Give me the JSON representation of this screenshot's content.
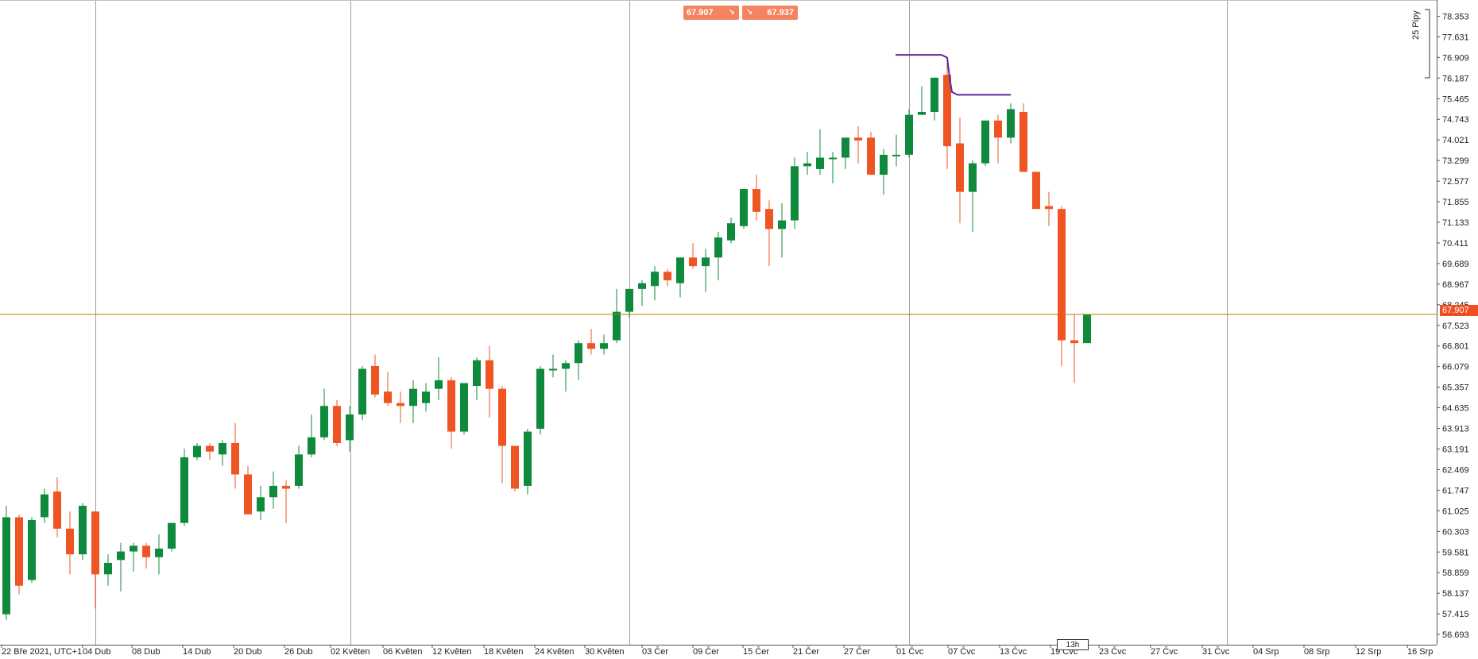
{
  "toolbar": {
    "sell_price": "67.907",
    "sell_arrow": "↘",
    "buy_price": "67.937",
    "buy_arrow": "↘"
  },
  "axis": {
    "pips_label": "25 Pipy",
    "current_price_tag": "67.907",
    "cursor_timeframe": "13h"
  },
  "colors": {
    "bull": "#0f8a3c",
    "bear": "#ef5423",
    "current_line": "#b07d00",
    "indicator": "#5b2a9b",
    "grid": "#a0a0a0"
  },
  "chart_data": {
    "type": "candlestick",
    "ylim": [
      56.5,
      78.7
    ],
    "y_ticks": [
      "78.353",
      "77.631",
      "76.909",
      "76.187",
      "75.465",
      "74.743",
      "74.021",
      "73.299",
      "72.577",
      "71.855",
      "71.133",
      "70.411",
      "69.689",
      "68.967",
      "68.245",
      "67.523",
      "66.801",
      "66.079",
      "65.357",
      "64.635",
      "63.913",
      "63.191",
      "62.469",
      "61.747",
      "61.025",
      "60.303",
      "59.581",
      "58.859",
      "58.137",
      "57.415",
      "56.693"
    ],
    "x_ticks": [
      "22 Bře 2021, UTC+1",
      "04 Dub",
      "08 Dub",
      "14 Dub",
      "20 Dub",
      "26 Dub",
      "02 Květen",
      "06 Květen",
      "12 Květen",
      "18 Květen",
      "24 Květen",
      "30 Květen",
      "03 Čer",
      "09 Čer",
      "15 Čer",
      "21 Čer",
      "27 Čer",
      "01 Čvc",
      "07 Čvc",
      "13 Čvc",
      "19 Čvc",
      "23 Čvc",
      "27 Čvc",
      "31 Čvc",
      "04 Srp",
      "08 Srp",
      "12 Srp",
      "16 Srp"
    ],
    "current_price": 67.907,
    "candles": [
      {
        "o": 57.4,
        "h": 61.2,
        "l": 57.2,
        "c": 60.8
      },
      {
        "o": 60.8,
        "h": 60.9,
        "l": 58.1,
        "c": 58.4
      },
      {
        "o": 58.6,
        "h": 60.8,
        "l": 58.5,
        "c": 60.7
      },
      {
        "o": 60.8,
        "h": 61.8,
        "l": 60.6,
        "c": 61.6
      },
      {
        "o": 61.7,
        "h": 62.2,
        "l": 60.1,
        "c": 60.4
      },
      {
        "o": 60.4,
        "h": 61.0,
        "l": 58.8,
        "c": 59.5
      },
      {
        "o": 59.5,
        "h": 61.3,
        "l": 59.3,
        "c": 61.2
      },
      {
        "o": 61.0,
        "h": 61.0,
        "l": 57.6,
        "c": 58.8
      },
      {
        "o": 58.8,
        "h": 59.5,
        "l": 58.4,
        "c": 59.2
      },
      {
        "o": 59.3,
        "h": 59.9,
        "l": 58.2,
        "c": 59.6
      },
      {
        "o": 59.6,
        "h": 59.9,
        "l": 58.9,
        "c": 59.8
      },
      {
        "o": 59.8,
        "h": 59.9,
        "l": 59.0,
        "c": 59.4
      },
      {
        "o": 59.4,
        "h": 60.2,
        "l": 58.8,
        "c": 59.7
      },
      {
        "o": 59.7,
        "h": 60.6,
        "l": 59.6,
        "c": 60.6
      },
      {
        "o": 60.6,
        "h": 63.2,
        "l": 60.5,
        "c": 62.9
      },
      {
        "o": 62.9,
        "h": 63.4,
        "l": 62.8,
        "c": 63.3
      },
      {
        "o": 63.3,
        "h": 63.4,
        "l": 62.8,
        "c": 63.1
      },
      {
        "o": 63.0,
        "h": 63.5,
        "l": 62.6,
        "c": 63.4
      },
      {
        "o": 63.4,
        "h": 64.1,
        "l": 61.8,
        "c": 62.3
      },
      {
        "o": 62.3,
        "h": 62.6,
        "l": 60.9,
        "c": 60.9
      },
      {
        "o": 61.0,
        "h": 61.9,
        "l": 60.7,
        "c": 61.5
      },
      {
        "o": 61.5,
        "h": 62.4,
        "l": 61.1,
        "c": 61.9
      },
      {
        "o": 61.9,
        "h": 62.1,
        "l": 60.6,
        "c": 61.8
      },
      {
        "o": 61.9,
        "h": 63.3,
        "l": 61.8,
        "c": 63.0
      },
      {
        "o": 63.0,
        "h": 64.4,
        "l": 62.9,
        "c": 63.6
      },
      {
        "o": 63.6,
        "h": 65.3,
        "l": 63.5,
        "c": 64.7
      },
      {
        "o": 64.7,
        "h": 64.9,
        "l": 63.3,
        "c": 63.4
      },
      {
        "o": 63.5,
        "h": 64.7,
        "l": 63.1,
        "c": 64.4
      },
      {
        "o": 64.4,
        "h": 66.1,
        "l": 64.2,
        "c": 66.0
      },
      {
        "o": 66.1,
        "h": 66.5,
        "l": 65.0,
        "c": 65.1
      },
      {
        "o": 65.2,
        "h": 65.9,
        "l": 64.7,
        "c": 64.8
      },
      {
        "o": 64.8,
        "h": 65.2,
        "l": 64.1,
        "c": 64.7
      },
      {
        "o": 64.7,
        "h": 65.6,
        "l": 64.1,
        "c": 65.3
      },
      {
        "o": 64.8,
        "h": 65.5,
        "l": 64.5,
        "c": 65.2
      },
      {
        "o": 65.3,
        "h": 66.4,
        "l": 64.9,
        "c": 65.6
      },
      {
        "o": 65.6,
        "h": 65.7,
        "l": 63.2,
        "c": 63.8
      },
      {
        "o": 63.8,
        "h": 65.5,
        "l": 63.7,
        "c": 65.5
      },
      {
        "o": 65.4,
        "h": 66.4,
        "l": 64.9,
        "c": 66.3
      },
      {
        "o": 66.3,
        "h": 66.8,
        "l": 64.3,
        "c": 65.3
      },
      {
        "o": 65.3,
        "h": 65.4,
        "l": 62.0,
        "c": 63.3
      },
      {
        "o": 63.3,
        "h": 63.3,
        "l": 61.7,
        "c": 61.8
      },
      {
        "o": 61.9,
        "h": 63.9,
        "l": 61.6,
        "c": 63.8
      },
      {
        "o": 63.9,
        "h": 66.1,
        "l": 63.7,
        "c": 66.0
      },
      {
        "o": 66.0,
        "h": 66.5,
        "l": 65.7,
        "c": 66.0
      },
      {
        "o": 66.0,
        "h": 66.3,
        "l": 65.2,
        "c": 66.2
      },
      {
        "o": 66.2,
        "h": 67.0,
        "l": 65.6,
        "c": 66.9
      },
      {
        "o": 66.9,
        "h": 67.4,
        "l": 66.5,
        "c": 66.7
      },
      {
        "o": 66.7,
        "h": 67.2,
        "l": 66.5,
        "c": 66.9
      },
      {
        "o": 67.0,
        "h": 68.8,
        "l": 66.9,
        "c": 68.0
      },
      {
        "o": 68.0,
        "h": 68.7,
        "l": 67.8,
        "c": 68.8
      },
      {
        "o": 68.8,
        "h": 69.1,
        "l": 68.2,
        "c": 69.0
      },
      {
        "o": 68.9,
        "h": 69.6,
        "l": 68.4,
        "c": 69.4
      },
      {
        "o": 69.4,
        "h": 69.5,
        "l": 68.9,
        "c": 69.1
      },
      {
        "o": 69.0,
        "h": 69.9,
        "l": 68.5,
        "c": 69.9
      },
      {
        "o": 69.9,
        "h": 70.4,
        "l": 69.5,
        "c": 69.6
      },
      {
        "o": 69.6,
        "h": 70.2,
        "l": 68.7,
        "c": 69.9
      },
      {
        "o": 69.9,
        "h": 70.8,
        "l": 69.1,
        "c": 70.6
      },
      {
        "o": 70.5,
        "h": 71.3,
        "l": 70.4,
        "c": 71.1
      },
      {
        "o": 71.0,
        "h": 72.3,
        "l": 70.9,
        "c": 72.3
      },
      {
        "o": 72.3,
        "h": 72.8,
        "l": 71.2,
        "c": 71.5
      },
      {
        "o": 71.6,
        "h": 71.9,
        "l": 69.6,
        "c": 70.9
      },
      {
        "o": 70.9,
        "h": 71.8,
        "l": 69.9,
        "c": 71.2
      },
      {
        "o": 71.2,
        "h": 73.4,
        "l": 70.9,
        "c": 73.1
      },
      {
        "o": 73.1,
        "h": 73.6,
        "l": 72.8,
        "c": 73.2
      },
      {
        "o": 73.0,
        "h": 74.4,
        "l": 72.8,
        "c": 73.4
      },
      {
        "o": 73.4,
        "h": 73.6,
        "l": 72.5,
        "c": 73.4
      },
      {
        "o": 73.4,
        "h": 74.0,
        "l": 73.0,
        "c": 74.1
      },
      {
        "o": 74.1,
        "h": 74.5,
        "l": 73.2,
        "c": 74.0
      },
      {
        "o": 74.1,
        "h": 74.3,
        "l": 72.8,
        "c": 72.8
      },
      {
        "o": 72.8,
        "h": 73.7,
        "l": 72.1,
        "c": 73.5
      },
      {
        "o": 73.5,
        "h": 74.2,
        "l": 73.1,
        "c": 73.5
      },
      {
        "o": 73.5,
        "h": 75.1,
        "l": 73.4,
        "c": 74.9
      },
      {
        "o": 74.9,
        "h": 75.9,
        "l": 74.9,
        "c": 75.0
      },
      {
        "o": 75.0,
        "h": 76.2,
        "l": 74.7,
        "c": 76.2
      },
      {
        "o": 76.3,
        "h": 76.9,
        "l": 73.0,
        "c": 73.8
      },
      {
        "o": 73.9,
        "h": 74.8,
        "l": 71.1,
        "c": 72.2
      },
      {
        "o": 72.2,
        "h": 73.3,
        "l": 70.8,
        "c": 73.2
      },
      {
        "o": 73.2,
        "h": 74.7,
        "l": 73.1,
        "c": 74.7
      },
      {
        "o": 74.7,
        "h": 74.9,
        "l": 73.2,
        "c": 74.1
      },
      {
        "o": 74.1,
        "h": 75.3,
        "l": 73.9,
        "c": 75.1
      },
      {
        "o": 75.0,
        "h": 75.3,
        "l": 72.9,
        "c": 72.9
      },
      {
        "o": 72.9,
        "h": 72.9,
        "l": 71.6,
        "c": 71.6
      },
      {
        "o": 71.7,
        "h": 72.2,
        "l": 71.0,
        "c": 71.6
      },
      {
        "o": 71.6,
        "h": 71.7,
        "l": 66.1,
        "c": 67.0
      },
      {
        "o": 67.0,
        "h": 67.9,
        "l": 65.5,
        "c": 66.9
      },
      {
        "o": 66.9,
        "h": 67.9,
        "l": 66.9,
        "c": 67.9
      }
    ]
  }
}
